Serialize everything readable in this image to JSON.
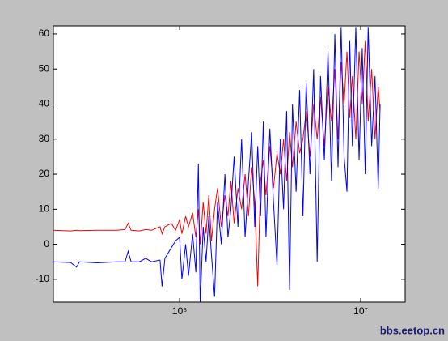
{
  "chart_data": {
    "type": "line",
    "x": [
      200000,
      250000,
      270000,
      280000,
      350000,
      450000,
      500000,
      520000,
      540000,
      600000,
      650000,
      700000,
      780000,
      800000,
      830000,
      900000,
      950000,
      1000000,
      1030000,
      1080000,
      1120000,
      1180000,
      1230000,
      1270000,
      1300000,
      1350000,
      1400000,
      1450000,
      1500000,
      1560000,
      1620000,
      1700000,
      1780000,
      1850000,
      1920000,
      2000000,
      2100000,
      2200000,
      2300000,
      2400000,
      2500000,
      2600000,
      2700000,
      2800000,
      2900000,
      3000000,
      3150000,
      3300000,
      3450000,
      3600000,
      3750000,
      3900000,
      4050000,
      4200000,
      4400000,
      4600000,
      4800000,
      5000000,
      5250000,
      5500000,
      5750000,
      6000000,
      6300000,
      6600000,
      6900000,
      7200000,
      7500000,
      7800000,
      8100000,
      8400000,
      8700000,
      9000000,
      9400000,
      9800000,
      10200000,
      10600000,
      11000000,
      11500000,
      12000000,
      12500000,
      12800000
    ],
    "series": [
      {
        "name": "red",
        "color": "#ff0000",
        "values": [
          4,
          3.8,
          4,
          3.9,
          4,
          4,
          4.2,
          6,
          4,
          3.8,
          4.2,
          4,
          5,
          3,
          5,
          6,
          4,
          7,
          3,
          8,
          5,
          9,
          2,
          10,
          0,
          12,
          3,
          14,
          1,
          10,
          16,
          5,
          14,
          8,
          18,
          6,
          16,
          10,
          20,
          8,
          22,
          12,
          -12,
          18,
          24,
          14,
          28,
          16,
          26,
          20,
          30,
          18,
          32,
          22,
          35,
          26,
          30,
          38,
          25,
          40,
          30,
          42,
          28,
          45,
          35,
          50,
          30,
          52,
          40,
          55,
          36,
          48,
          30,
          55,
          40,
          58,
          35,
          50,
          30,
          45,
          38
        ]
      },
      {
        "name": "blue",
        "color": "#0000ff",
        "values": [
          -5,
          -5.2,
          -6.5,
          -5,
          -5.3,
          -5,
          -5,
          -2,
          -5,
          -5,
          -4,
          -5,
          -4.5,
          -12,
          -4,
          -1,
          1,
          2,
          -10,
          0,
          -9,
          3,
          -8,
          23,
          -17,
          5,
          -5,
          8,
          -3,
          -15,
          12,
          0,
          20,
          2,
          10,
          25,
          5,
          30,
          2,
          18,
          32,
          5,
          28,
          8,
          35,
          2,
          33,
          12,
          -6,
          30,
          10,
          38,
          -13,
          40,
          15,
          44,
          8,
          46,
          20,
          50,
          -5,
          48,
          24,
          55,
          18,
          60,
          22,
          62,
          25,
          15,
          58,
          28,
          62,
          24,
          56,
          20,
          62,
          28,
          48,
          16,
          40
        ]
      }
    ],
    "xlim": [
      201000,
      17600000
    ],
    "log_x": true,
    "xticks": [
      {
        "value": 1000000,
        "label": "10⁶"
      },
      {
        "value": 10000000,
        "label": "10⁷"
      }
    ],
    "ylim": [
      -16.5,
      62.3
    ],
    "yticks": [
      -10,
      0,
      10,
      20,
      30,
      40,
      50,
      60
    ],
    "watermark": "bbs.eetop.cn"
  }
}
